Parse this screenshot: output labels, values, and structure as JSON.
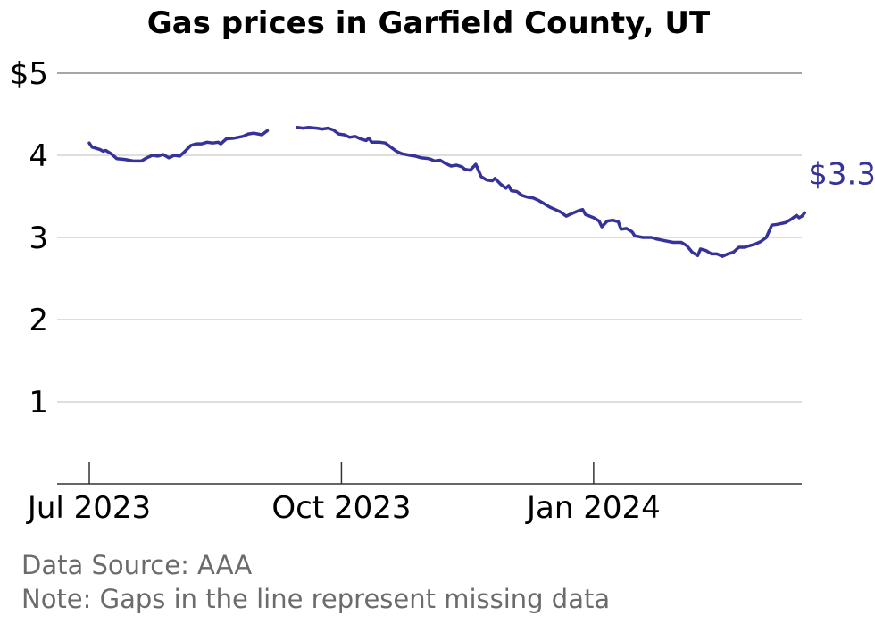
{
  "chart_data": {
    "type": "line",
    "title": "Gas prices in Garfield County, UT",
    "xlabel": "",
    "ylabel": "",
    "y_tick_labels": [
      "1",
      "2",
      "3",
      "4",
      "$5"
    ],
    "y_ticks": [
      1,
      2,
      3,
      4,
      5
    ],
    "ylim": [
      0,
      5
    ],
    "x_ticks": [
      {
        "date": "2023-07-01",
        "label": "Jul 2023"
      },
      {
        "date": "2023-10-01",
        "label": "Oct 2023"
      },
      {
        "date": "2024-01-01",
        "label": "Jan 2024"
      }
    ],
    "xlim": [
      "2023-06-20",
      "2024-03-30"
    ],
    "grid": true,
    "line_color": "#35339a",
    "end_label": "$3.30",
    "series": [
      {
        "segments": [
          [
            [
              "2023-07-01",
              4.15
            ],
            [
              "2023-07-02",
              4.1
            ],
            [
              "2023-07-03",
              4.09
            ],
            [
              "2023-07-05",
              4.07
            ],
            [
              "2023-07-06",
              4.05
            ],
            [
              "2023-07-07",
              4.06
            ],
            [
              "2023-07-09",
              4.02
            ],
            [
              "2023-07-11",
              3.96
            ],
            [
              "2023-07-14",
              3.95
            ],
            [
              "2023-07-17",
              3.93
            ],
            [
              "2023-07-20",
              3.93
            ],
            [
              "2023-07-22",
              3.97
            ],
            [
              "2023-07-24",
              4.0
            ],
            [
              "2023-07-26",
              3.99
            ],
            [
              "2023-07-28",
              4.01
            ],
            [
              "2023-07-30",
              3.97
            ],
            [
              "2023-08-01",
              4.0
            ],
            [
              "2023-08-03",
              3.99
            ],
            [
              "2023-08-05",
              4.05
            ],
            [
              "2023-08-07",
              4.12
            ],
            [
              "2023-08-09",
              4.14
            ],
            [
              "2023-08-11",
              4.14
            ],
            [
              "2023-08-13",
              4.16
            ],
            [
              "2023-08-15",
              4.15
            ],
            [
              "2023-08-17",
              4.16
            ],
            [
              "2023-08-18",
              4.14
            ],
            [
              "2023-08-20",
              4.2
            ],
            [
              "2023-08-23",
              4.21
            ],
            [
              "2023-08-26",
              4.23
            ],
            [
              "2023-08-28",
              4.26
            ],
            [
              "2023-08-30",
              4.27
            ],
            [
              "2023-09-02",
              4.25
            ],
            [
              "2023-09-04",
              4.3
            ]
          ],
          [
            [
              "2023-09-15",
              4.34
            ],
            [
              "2023-09-17",
              4.33
            ],
            [
              "2023-09-19",
              4.34
            ],
            [
              "2023-09-22",
              4.33
            ],
            [
              "2023-09-24",
              4.32
            ],
            [
              "2023-09-26",
              4.33
            ],
            [
              "2023-09-28",
              4.31
            ],
            [
              "2023-09-30",
              4.26
            ],
            [
              "2023-10-02",
              4.25
            ],
            [
              "2023-10-04",
              4.22
            ],
            [
              "2023-10-06",
              4.23
            ],
            [
              "2023-10-08",
              4.2
            ],
            [
              "2023-10-10",
              4.18
            ],
            [
              "2023-10-11",
              4.21
            ],
            [
              "2023-10-12",
              4.16
            ],
            [
              "2023-10-15",
              4.16
            ],
            [
              "2023-10-17",
              4.15
            ],
            [
              "2023-10-19",
              4.1
            ],
            [
              "2023-10-21",
              4.05
            ],
            [
              "2023-10-23",
              4.02
            ],
            [
              "2023-10-26",
              4.0
            ],
            [
              "2023-10-28",
              3.99
            ],
            [
              "2023-10-30",
              3.97
            ],
            [
              "2023-11-02",
              3.96
            ],
            [
              "2023-11-04",
              3.93
            ],
            [
              "2023-11-06",
              3.94
            ],
            [
              "2023-11-08",
              3.9
            ],
            [
              "2023-11-10",
              3.87
            ],
            [
              "2023-11-12",
              3.88
            ],
            [
              "2023-11-14",
              3.86
            ],
            [
              "2023-11-15",
              3.83
            ],
            [
              "2023-11-17",
              3.82
            ],
            [
              "2023-11-19",
              3.89
            ],
            [
              "2023-11-21",
              3.74
            ],
            [
              "2023-11-23",
              3.7
            ],
            [
              "2023-11-25",
              3.69
            ],
            [
              "2023-11-26",
              3.72
            ],
            [
              "2023-11-28",
              3.65
            ],
            [
              "2023-11-30",
              3.6
            ],
            [
              "2023-12-01",
              3.63
            ],
            [
              "2023-12-02",
              3.57
            ],
            [
              "2023-12-04",
              3.56
            ],
            [
              "2023-12-06",
              3.51
            ],
            [
              "2023-12-08",
              3.49
            ],
            [
              "2023-12-10",
              3.48
            ],
            [
              "2023-12-12",
              3.45
            ],
            [
              "2023-12-14",
              3.41
            ],
            [
              "2023-12-16",
              3.37
            ],
            [
              "2023-12-18",
              3.34
            ],
            [
              "2023-12-20",
              3.31
            ],
            [
              "2023-12-22",
              3.26
            ],
            [
              "2023-12-24",
              3.29
            ],
            [
              "2023-12-26",
              3.32
            ],
            [
              "2023-12-28",
              3.34
            ],
            [
              "2023-12-29",
              3.28
            ],
            [
              "2024-01-01",
              3.24
            ],
            [
              "2024-01-03",
              3.2
            ],
            [
              "2024-01-04",
              3.13
            ],
            [
              "2024-01-06",
              3.2
            ],
            [
              "2024-01-08",
              3.21
            ],
            [
              "2024-01-10",
              3.19
            ],
            [
              "2024-01-11",
              3.1
            ],
            [
              "2024-01-13",
              3.11
            ],
            [
              "2024-01-15",
              3.07
            ],
            [
              "2024-01-16",
              3.02
            ],
            [
              "2024-01-19",
              3.0
            ],
            [
              "2024-01-22",
              3.0
            ],
            [
              "2024-01-24",
              2.98
            ],
            [
              "2024-01-27",
              2.96
            ],
            [
              "2024-01-30",
              2.94
            ],
            [
              "2024-02-02",
              2.94
            ],
            [
              "2024-02-04",
              2.9
            ],
            [
              "2024-02-06",
              2.82
            ],
            [
              "2024-02-08",
              2.78
            ],
            [
              "2024-02-09",
              2.86
            ],
            [
              "2024-02-11",
              2.84
            ],
            [
              "2024-02-13",
              2.8
            ],
            [
              "2024-02-15",
              2.8
            ],
            [
              "2024-02-17",
              2.77
            ],
            [
              "2024-02-19",
              2.8
            ],
            [
              "2024-02-21",
              2.82
            ],
            [
              "2024-02-23",
              2.88
            ],
            [
              "2024-02-25",
              2.88
            ],
            [
              "2024-02-27",
              2.9
            ],
            [
              "2024-02-29",
              2.92
            ],
            [
              "2024-03-02",
              2.95
            ],
            [
              "2024-03-04",
              3.0
            ],
            [
              "2024-03-06",
              3.15
            ],
            [
              "2024-03-08",
              3.16
            ],
            [
              "2024-03-11",
              3.18
            ],
            [
              "2024-03-13",
              3.22
            ],
            [
              "2024-03-15",
              3.27
            ],
            [
              "2024-03-16",
              3.24
            ],
            [
              "2024-03-17",
              3.26
            ],
            [
              "2024-03-18",
              3.3
            ]
          ]
        ]
      }
    ]
  },
  "footer": {
    "source": "Data Source: AAA",
    "note": "Note: Gaps in the line represent missing data"
  }
}
